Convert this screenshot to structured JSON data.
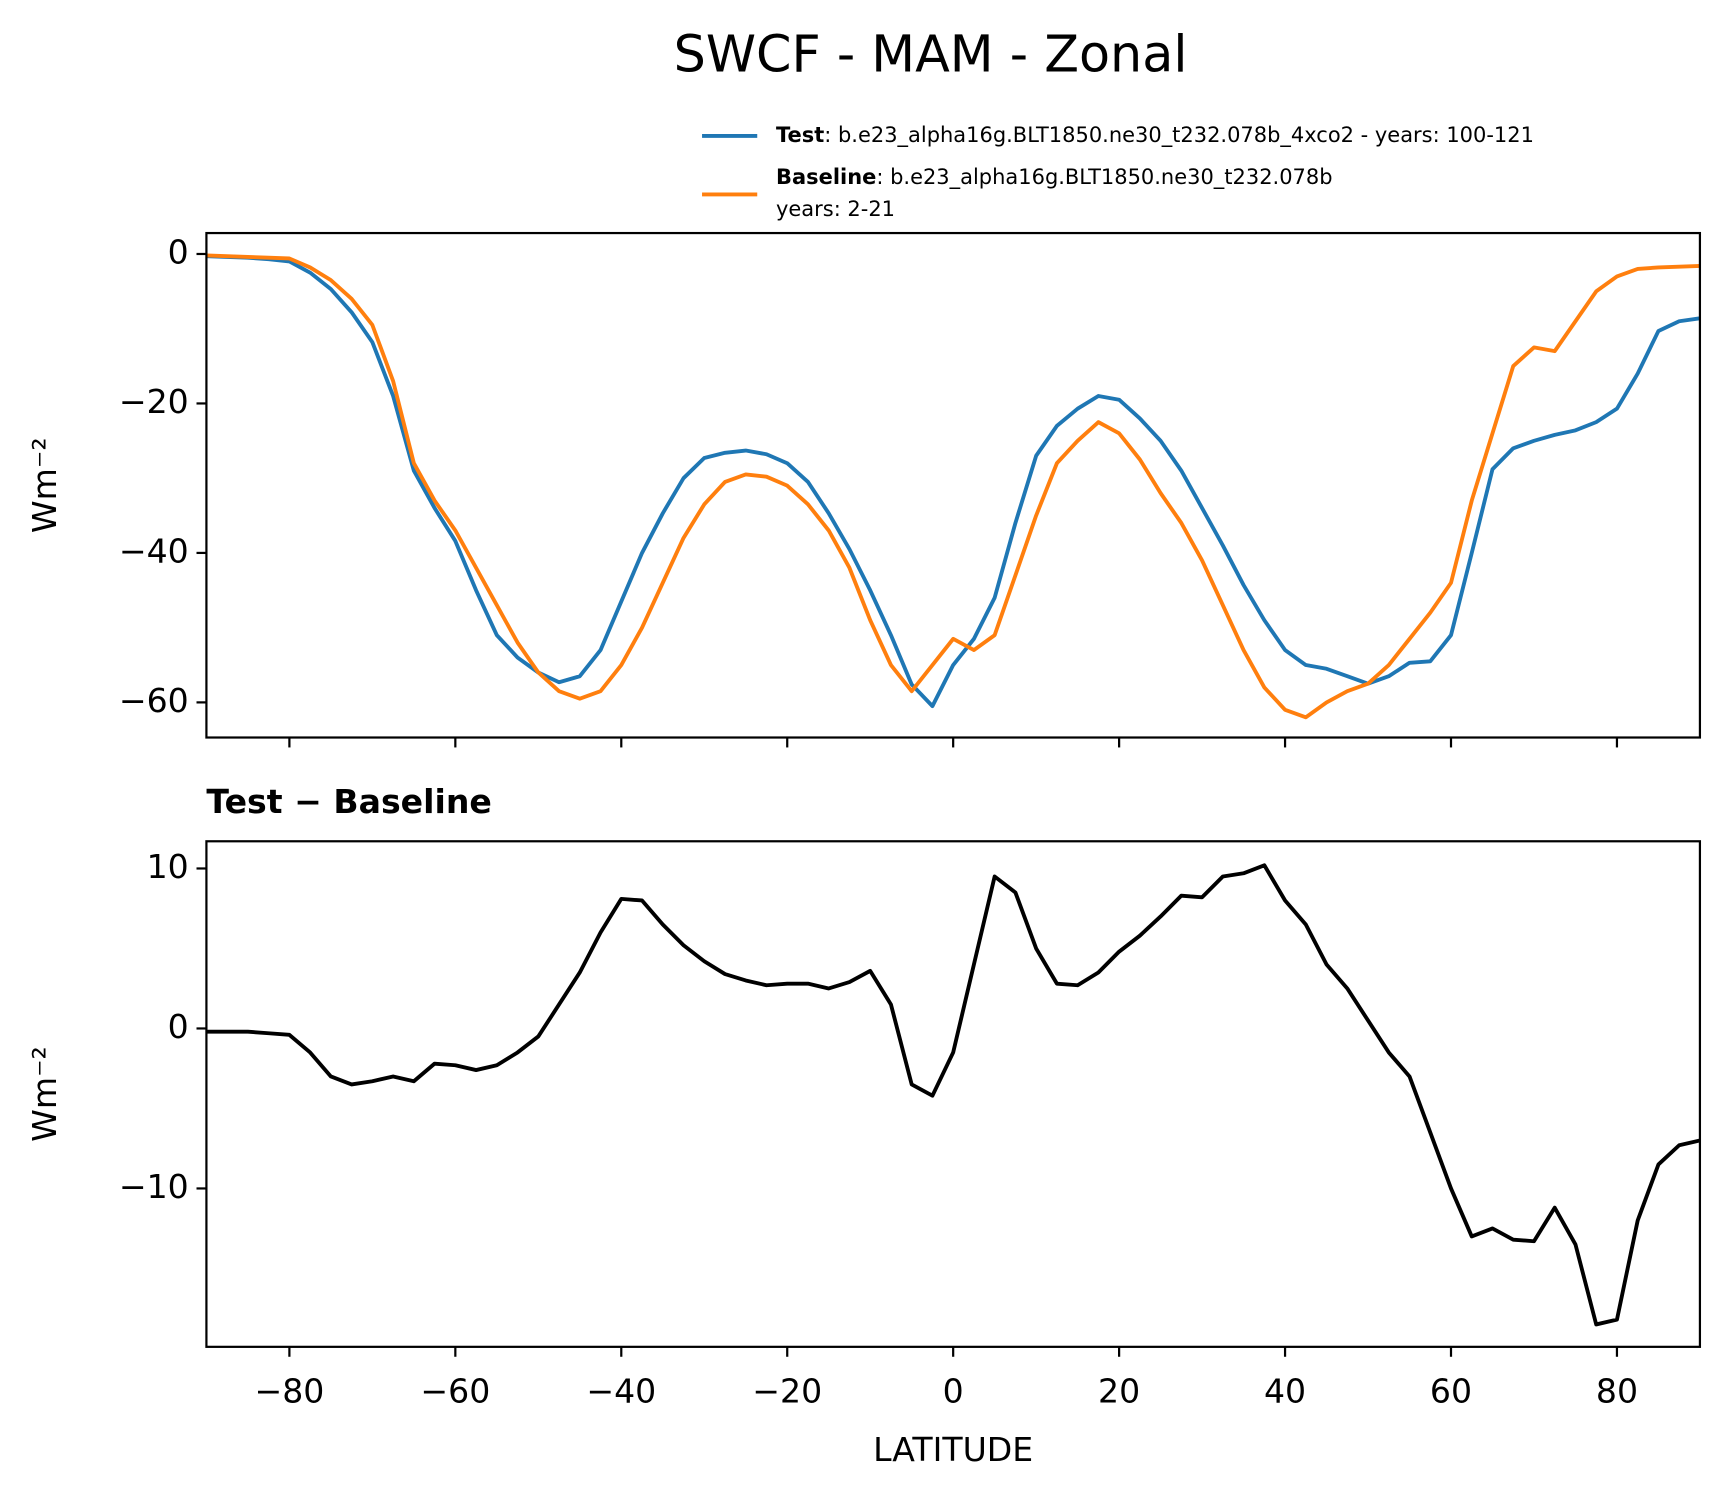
{
  "chart_data": [
    {
      "type": "line",
      "title": "SWCF - MAM - Zonal",
      "ylabel": "Wm⁻²",
      "x": [
        -90,
        -87.5,
        -85,
        -82.5,
        -80,
        -77.5,
        -75,
        -72.5,
        -70,
        -67.5,
        -65,
        -62.5,
        -60,
        -57.5,
        -55,
        -52.5,
        -50,
        -47.5,
        -45,
        -42.5,
        -40,
        -37.5,
        -35,
        -32.5,
        -30,
        -27.5,
        -25,
        -22.5,
        -20,
        -17.5,
        -15,
        -12.5,
        -10,
        -7.5,
        -5,
        -2.5,
        0,
        2.5,
        5,
        7.5,
        10,
        12.5,
        15,
        17.5,
        20,
        22.5,
        25,
        27.5,
        30,
        32.5,
        35,
        37.5,
        40,
        42.5,
        45,
        47.5,
        50,
        52.5,
        55,
        57.5,
        60,
        62.5,
        65,
        67.5,
        70,
        72.5,
        75,
        77.5,
        80,
        82.5,
        85,
        87.5,
        90
      ],
      "series": [
        {
          "name": "Test",
          "description": ": b.e23_alpha16g.BLT1850.ne30_t232.078b_4xco2 - years: 100-121",
          "color": "#1f77b4",
          "values": [
            -0.3,
            -0.4,
            -0.5,
            -0.7,
            -1.0,
            -2.5,
            -4.7,
            -7.8,
            -11.8,
            -19,
            -29,
            -34,
            -38.4,
            -45,
            -51,
            -54,
            -56,
            -57.3,
            -56.5,
            -53,
            -46.5,
            -40,
            -34.7,
            -30,
            -27.3,
            -26.6,
            -26.3,
            -26.8,
            -28,
            -30.5,
            -34.7,
            -39.5,
            -45,
            -51,
            -57.6,
            -60.5,
            -55,
            -51.5,
            -46,
            -36,
            -27,
            -23,
            -20.7,
            -19,
            -19.5,
            -22,
            -25,
            -29,
            -34,
            -39,
            -44.3,
            -49,
            -53,
            -55,
            -55.5,
            -56.5,
            -57.5,
            -56.5,
            -54.7,
            -54.5,
            -51,
            -40,
            -28.8,
            -26,
            -25,
            -24.2,
            -23.6,
            -22.5,
            -20.7,
            -16,
            -10.3,
            -9,
            -8.6
          ]
        },
        {
          "name": "Baseline",
          "description": ": b.e23_alpha16g.BLT1850.ne30_t232.078b",
          "description_line2": "years: 2-21",
          "color": "#ff7f0e",
          "values": [
            -0.2,
            -0.3,
            -0.4,
            -0.5,
            -0.6,
            -1.8,
            -3.5,
            -6,
            -9.5,
            -17,
            -28,
            -33,
            -37,
            -42,
            -47,
            -52,
            -56,
            -58.5,
            -59.5,
            -58.5,
            -55,
            -50,
            -44,
            -38,
            -33.5,
            -30.5,
            -29.5,
            -29.8,
            -31,
            -33.5,
            -37,
            -42,
            -49,
            -55,
            -58.5,
            -55,
            -51.5,
            -53,
            -51,
            -43,
            -35,
            -28,
            -25,
            -22.5,
            -24,
            -27.5,
            -32,
            -36,
            -41,
            -47,
            -53,
            -58,
            -61,
            -62,
            -60,
            -58.5,
            -57.5,
            -55,
            -51.5,
            -48,
            -44,
            -33,
            -24,
            -15,
            -12.5,
            -13,
            -9,
            -5,
            -3,
            -2,
            -1.8,
            -1.7,
            -1.6
          ]
        }
      ],
      "xlim": [
        -90,
        90
      ],
      "xticks": [
        -80,
        -60,
        -40,
        -20,
        0,
        20,
        40,
        60,
        80
      ],
      "ylim": [
        -64.7,
        2.8
      ],
      "yticks": [
        {
          "value": -60,
          "label": "−60"
        },
        {
          "value": -40,
          "label": "−40"
        },
        {
          "value": -20,
          "label": "−20"
        },
        0
      ]
    },
    {
      "type": "line",
      "title": "Test − Baseline",
      "ylabel": "Wm⁻²",
      "xlabel": "LATITUDE",
      "x": [
        -90,
        -87.5,
        -85,
        -82.5,
        -80,
        -77.5,
        -75,
        -72.5,
        -70,
        -67.5,
        -65,
        -62.5,
        -60,
        -57.5,
        -55,
        -52.5,
        -50,
        -47.5,
        -45,
        -42.5,
        -40,
        -37.5,
        -35,
        -32.5,
        -30,
        -27.5,
        -25,
        -22.5,
        -20,
        -17.5,
        -15,
        -12.5,
        -10,
        -7.5,
        -5,
        -2.5,
        0,
        2.5,
        5,
        7.5,
        10,
        12.5,
        15,
        17.5,
        20,
        22.5,
        25,
        27.5,
        30,
        32.5,
        35,
        37.5,
        40,
        42.5,
        45,
        47.5,
        50,
        52.5,
        55,
        57.5,
        60,
        62.5,
        65,
        67.5,
        70,
        72.5,
        75,
        77.5,
        80,
        82.5,
        85,
        87.5,
        90
      ],
      "series": [
        {
          "color": "#000000",
          "values": [
            -0.2,
            -0.2,
            -0.2,
            -0.3,
            -0.4,
            -1.5,
            -3,
            -3.5,
            -3.3,
            -3,
            -3.3,
            -2.2,
            -2.3,
            -2.6,
            -2.3,
            -1.5,
            -0.5,
            1.5,
            3.5,
            6,
            8.1,
            8,
            6.5,
            5.2,
            4.2,
            3.4,
            3,
            2.7,
            2.8,
            2.8,
            2.5,
            2.9,
            3.6,
            1.5,
            -3.5,
            -4.2,
            -1.5,
            4,
            9.5,
            8.5,
            5,
            2.8,
            2.7,
            3.5,
            4.8,
            5.8,
            7,
            8.3,
            8.2,
            9.5,
            9.7,
            10.2,
            8,
            6.5,
            4,
            2.5,
            0.5,
            -1.5,
            -3,
            -6.5,
            -10,
            -13,
            -12.5,
            -13.2,
            -13.3,
            -11.2,
            -13.5,
            -18.5,
            -18.2,
            -12,
            -8.5,
            -7.3,
            -7
          ]
        }
      ],
      "xlim": [
        -90,
        90
      ],
      "xticks": [
        {
          "value": -80,
          "label": "−80"
        },
        {
          "value": -60,
          "label": "−60"
        },
        {
          "value": -40,
          "label": "−40"
        },
        {
          "value": -20,
          "label": "−20"
        },
        0,
        20,
        40,
        60,
        80
      ],
      "ylim": [
        -19.9,
        11.7
      ],
      "yticks": [
        {
          "value": -10,
          "label": "−10"
        },
        0,
        10
      ]
    }
  ]
}
